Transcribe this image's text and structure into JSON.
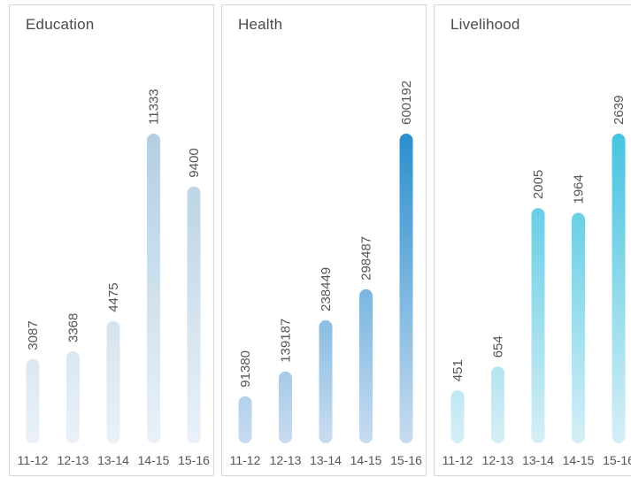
{
  "chart_data": [
    {
      "type": "bar",
      "title": "Education",
      "categories": [
        "11-12",
        "12-13",
        "13-14",
        "14-15",
        "15-16"
      ],
      "values": [
        3087,
        3368,
        4475,
        11333,
        9400
      ],
      "colors": {
        "top": "#b4cfe1",
        "bottom": "#eaf1f8"
      }
    },
    {
      "type": "bar",
      "title": "Health",
      "categories": [
        "11-12",
        "12-13",
        "13-14",
        "14-15",
        "15-16"
      ],
      "values": [
        91380,
        139187,
        238449,
        298487,
        600192
      ],
      "colors": {
        "top": "#2a8fce",
        "bottom": "#c9dcf0"
      }
    },
    {
      "type": "bar",
      "title": "Livelihood",
      "categories": [
        "11-12",
        "12-13",
        "13-14",
        "14-15",
        "15-16"
      ],
      "values": [
        451,
        654,
        2005,
        1964,
        2639
      ],
      "colors": {
        "top": "#46c4e0",
        "bottom": "#d6eff6"
      }
    }
  ]
}
